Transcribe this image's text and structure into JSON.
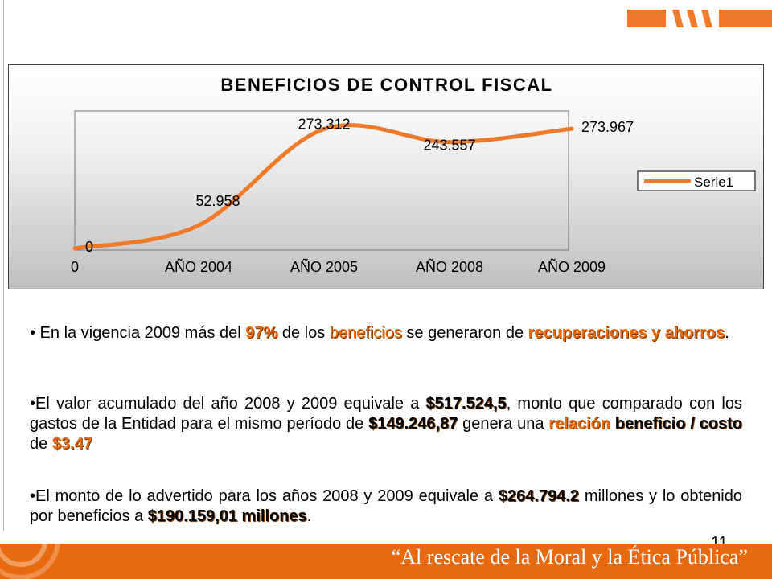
{
  "chart_data": {
    "type": "line",
    "title": "BENEFICIOS DE CONTROL FISCAL",
    "categories": [
      "0",
      "AÑO 2004",
      "AÑO 2005",
      "AÑO 2008",
      "AÑO 2009"
    ],
    "series": [
      {
        "name": "Serie1",
        "values": [
          0,
          52.958,
          273.312,
          243.557,
          273.967
        ],
        "labels": [
          "0",
          "52.958",
          "273.312",
          "243.557",
          "273.967"
        ],
        "color": "#f07a2a"
      }
    ],
    "ylim": [
      0,
      300
    ],
    "grid": false,
    "legend": "right"
  },
  "bullets": {
    "b1": {
      "prefix": "• En la vigencia 2009 más del ",
      "pct": "97%",
      "mid1": " de los ",
      "beneficios": "beneficios",
      "mid2": " se generaron de ",
      "recuperaciones": "recuperaciones y ahorros",
      "end": "."
    },
    "b2": {
      "prefix": "•El valor acumulado del año 2008 y 2009 equivale a ",
      "value1": "$517.524,5",
      "mid1": ", monto que comparado con los gastos de la Entidad para el mismo período de ",
      "value2": "$149.246,87",
      "mid2": " genera una ",
      "relacion": "relación",
      "space": " ",
      "beneficio_costo": "beneficio / costo",
      "mid3": " de ",
      "value3": "$3.47"
    },
    "b3": {
      "prefix": "•El monto de lo advertido para los años 2008 y 2009 equivale a ",
      "value1": "$264.794.2",
      "mid1": " millones y lo obtenido por beneficios a ",
      "value2": "$190.159,01 millones",
      "end": "."
    }
  },
  "page_number": "11",
  "footer": {
    "slogan": "“Al rescate de la Moral y la Ética Pública”",
    "color": "#e8690f"
  }
}
